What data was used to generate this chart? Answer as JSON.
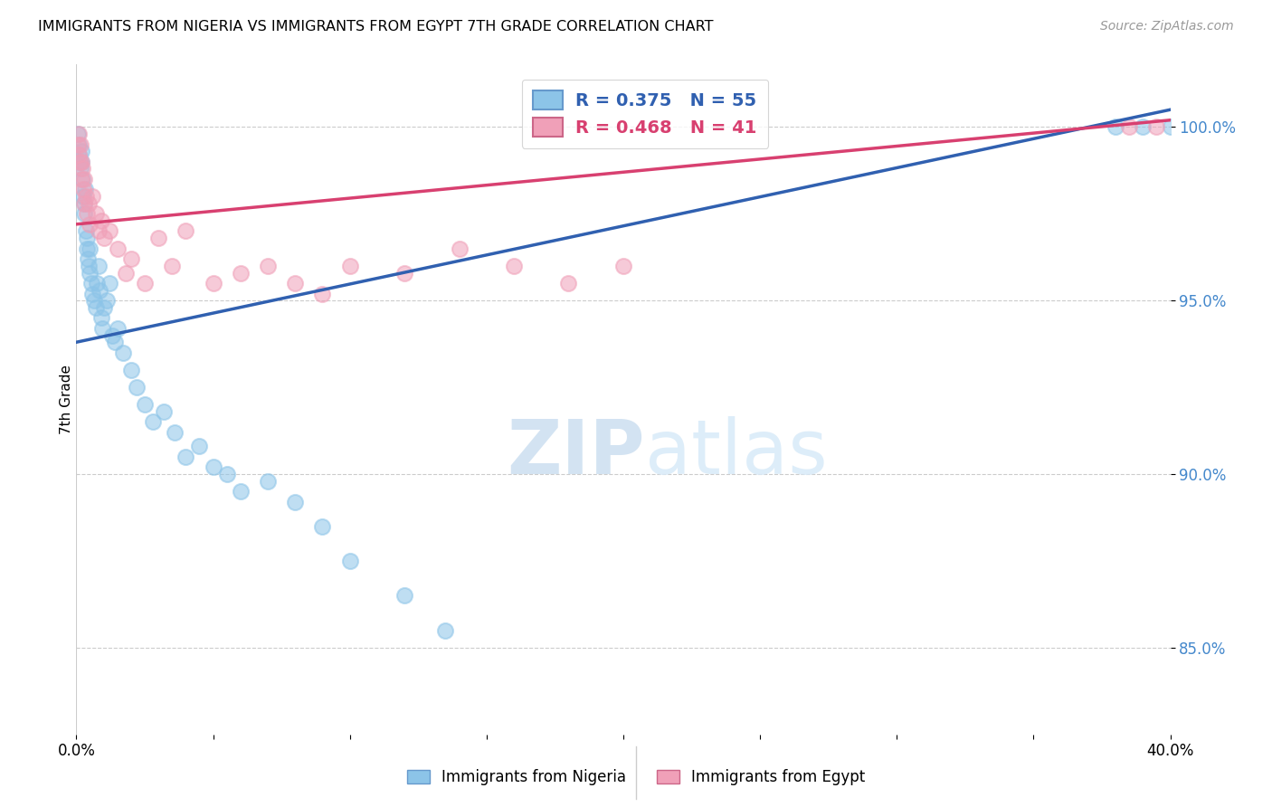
{
  "title": "IMMIGRANTS FROM NIGERIA VS IMMIGRANTS FROM EGYPT 7TH GRADE CORRELATION CHART",
  "source": "Source: ZipAtlas.com",
  "ylabel": "7th Grade",
  "xlim": [
    0.0,
    40.0
  ],
  "ylim": [
    82.5,
    101.8
  ],
  "yticks": [
    85.0,
    90.0,
    95.0,
    100.0
  ],
  "ytick_labels": [
    "85.0%",
    "90.0%",
    "95.0%",
    "100.0%"
  ],
  "legend_r_nigeria": "R = 0.375",
  "legend_n_nigeria": "N = 55",
  "legend_r_egypt": "R = 0.468",
  "legend_n_egypt": "N = 41",
  "color_nigeria": "#8cc4e8",
  "color_egypt": "#f0a0b8",
  "color_nigeria_line": "#3060b0",
  "color_egypt_line": "#d84070",
  "watermark_zip": "ZIP",
  "watermark_atlas": "atlas",
  "nigeria_x": [
    0.05,
    0.08,
    0.1,
    0.12,
    0.15,
    0.18,
    0.2,
    0.22,
    0.25,
    0.28,
    0.3,
    0.32,
    0.35,
    0.38,
    0.4,
    0.42,
    0.45,
    0.48,
    0.5,
    0.55,
    0.6,
    0.65,
    0.7,
    0.75,
    0.8,
    0.85,
    0.9,
    0.95,
    1.0,
    1.1,
    1.2,
    1.3,
    1.4,
    1.5,
    1.7,
    2.0,
    2.2,
    2.5,
    2.8,
    3.2,
    3.6,
    4.0,
    4.5,
    5.0,
    5.5,
    6.0,
    7.0,
    8.0,
    9.0,
    10.0,
    12.0,
    13.5,
    38.0,
    39.0,
    40.0
  ],
  "nigeria_y": [
    99.8,
    99.5,
    99.2,
    99.0,
    98.8,
    99.3,
    99.0,
    98.5,
    98.0,
    97.5,
    97.8,
    98.2,
    97.0,
    96.5,
    96.8,
    96.2,
    96.0,
    95.8,
    96.5,
    95.5,
    95.2,
    95.0,
    94.8,
    95.5,
    96.0,
    95.3,
    94.5,
    94.2,
    94.8,
    95.0,
    95.5,
    94.0,
    93.8,
    94.2,
    93.5,
    93.0,
    92.5,
    92.0,
    91.5,
    91.8,
    91.2,
    90.5,
    90.8,
    90.2,
    90.0,
    89.5,
    89.8,
    89.2,
    88.5,
    87.5,
    86.5,
    85.5,
    100.0,
    100.0,
    100.0
  ],
  "egypt_x": [
    0.05,
    0.08,
    0.1,
    0.12,
    0.15,
    0.18,
    0.2,
    0.22,
    0.25,
    0.28,
    0.3,
    0.35,
    0.4,
    0.45,
    0.5,
    0.6,
    0.7,
    0.8,
    0.9,
    1.0,
    1.2,
    1.5,
    1.8,
    2.0,
    2.5,
    3.0,
    3.5,
    4.0,
    5.0,
    6.0,
    7.0,
    8.0,
    9.0,
    10.0,
    12.0,
    14.0,
    16.0,
    18.0,
    20.0,
    38.5,
    39.5
  ],
  "egypt_y": [
    99.5,
    99.8,
    99.2,
    99.0,
    99.5,
    98.5,
    99.0,
    98.8,
    98.2,
    98.5,
    97.8,
    98.0,
    97.5,
    97.8,
    97.2,
    98.0,
    97.5,
    97.0,
    97.3,
    96.8,
    97.0,
    96.5,
    95.8,
    96.2,
    95.5,
    96.8,
    96.0,
    97.0,
    95.5,
    95.8,
    96.0,
    95.5,
    95.2,
    96.0,
    95.8,
    96.5,
    96.0,
    95.5,
    96.0,
    100.0,
    100.0
  ]
}
